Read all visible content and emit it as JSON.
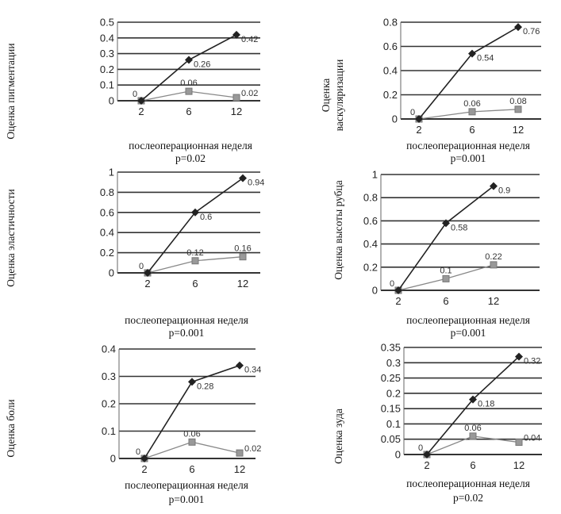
{
  "chart_data": [
    {
      "type": "line",
      "ylabel": "Оценка пигментации",
      "xlabel": "послеоперационная неделя",
      "note": "p=0.02",
      "categories": [
        "2",
        "6",
        "12"
      ],
      "ylim": [
        0,
        0.5
      ],
      "yticks": [
        "0",
        "0.1",
        "0.2",
        "0.3",
        "0.4",
        "0.5"
      ],
      "grid": true,
      "series": [
        {
          "values": [
            0,
            0.26,
            0.42
          ],
          "labels": [
            "",
            "0.26",
            "0.42"
          ],
          "color": "#222222",
          "marker": "diamond"
        },
        {
          "values": [
            0,
            0.06,
            0.02
          ],
          "labels": [
            "0",
            "0.06",
            "0.02"
          ],
          "color": "#888888",
          "marker": "square"
        }
      ]
    },
    {
      "type": "line",
      "ylabel": "Оценка васкуляризации",
      "xlabel": "послеоперационная неделя",
      "note": "p=0.001",
      "categories": [
        "2",
        "6",
        "12"
      ],
      "ylim": [
        0,
        0.8
      ],
      "yticks": [
        "0",
        "0.2",
        "0.4",
        "0.6",
        "0.8"
      ],
      "grid": true,
      "series": [
        {
          "values": [
            0,
            0.54,
            0.76
          ],
          "labels": [
            "",
            "0.54",
            "0.76"
          ],
          "color": "#222222",
          "marker": "diamond"
        },
        {
          "values": [
            0,
            0.06,
            0.08
          ],
          "labels": [
            "0",
            "0.06",
            "0.08"
          ],
          "color": "#888888",
          "marker": "square"
        }
      ]
    },
    {
      "type": "line",
      "ylabel": "Оценка эластичности",
      "xlabel": "послеоперационная неделя",
      "note": "p=0.001",
      "categories": [
        "2",
        "6",
        "12"
      ],
      "ylim": [
        0,
        1
      ],
      "yticks": [
        "0",
        "0.2",
        "0.4",
        "0.6",
        "0.8",
        "1"
      ],
      "grid": true,
      "series": [
        {
          "values": [
            0,
            0.6,
            0.94
          ],
          "labels": [
            "",
            "0.6",
            "0.94"
          ],
          "color": "#222222",
          "marker": "diamond"
        },
        {
          "values": [
            0,
            0.12,
            0.16
          ],
          "labels": [
            "0",
            "0.12",
            "0.16"
          ],
          "color": "#888888",
          "marker": "square"
        }
      ]
    },
    {
      "type": "line",
      "ylabel": "Оценка высоты рубца",
      "xlabel": "послеоперационная неделя",
      "note": "p=0.001",
      "categories": [
        "2",
        "6",
        "12"
      ],
      "ylim": [
        0,
        1
      ],
      "yticks": [
        "0",
        "0.2",
        "0.4",
        "0.6",
        "0.8",
        "1"
      ],
      "grid": true,
      "series": [
        {
          "values": [
            0,
            0.58,
            0.9
          ],
          "labels": [
            "",
            "0.58",
            "0.9"
          ],
          "color": "#222222",
          "marker": "diamond"
        },
        {
          "values": [
            0,
            0.1,
            0.22
          ],
          "labels": [
            "0",
            "0.1",
            "0.22"
          ],
          "color": "#888888",
          "marker": "square"
        }
      ]
    },
    {
      "type": "line",
      "ylabel": "Оценка боли",
      "xlabel": "послеоперационная неделя",
      "note": "p=0.001",
      "categories": [
        "2",
        "6",
        "12"
      ],
      "ylim": [
        0,
        0.4
      ],
      "yticks": [
        "0",
        "0.1",
        "0.2",
        "0.3",
        "0.4"
      ],
      "grid": true,
      "series": [
        {
          "values": [
            0,
            0.28,
            0.34
          ],
          "labels": [
            "",
            "0.28",
            "0.34"
          ],
          "color": "#222222",
          "marker": "diamond"
        },
        {
          "values": [
            0,
            0.06,
            0.02
          ],
          "labels": [
            "0",
            "0.06",
            "0.02"
          ],
          "color": "#888888",
          "marker": "square"
        }
      ]
    },
    {
      "type": "line",
      "ylabel": "Оценка зуда",
      "xlabel": "послеоперационная неделя",
      "note": "p=0.02",
      "categories": [
        "2",
        "6",
        "12"
      ],
      "ylim": [
        0,
        0.35
      ],
      "yticks": [
        "0",
        "0.05",
        "0.1",
        "0.15",
        "0.2",
        "0.25",
        "0.3",
        "0.35"
      ],
      "grid": true,
      "series": [
        {
          "values": [
            0,
            0.18,
            0.32
          ],
          "labels": [
            "",
            "0.18",
            "0.32"
          ],
          "color": "#222222",
          "marker": "diamond"
        },
        {
          "values": [
            0,
            0.06,
            0.04
          ],
          "labels": [
            "0",
            "0.06",
            "0.04"
          ],
          "color": "#888888",
          "marker": "square"
        }
      ]
    }
  ]
}
